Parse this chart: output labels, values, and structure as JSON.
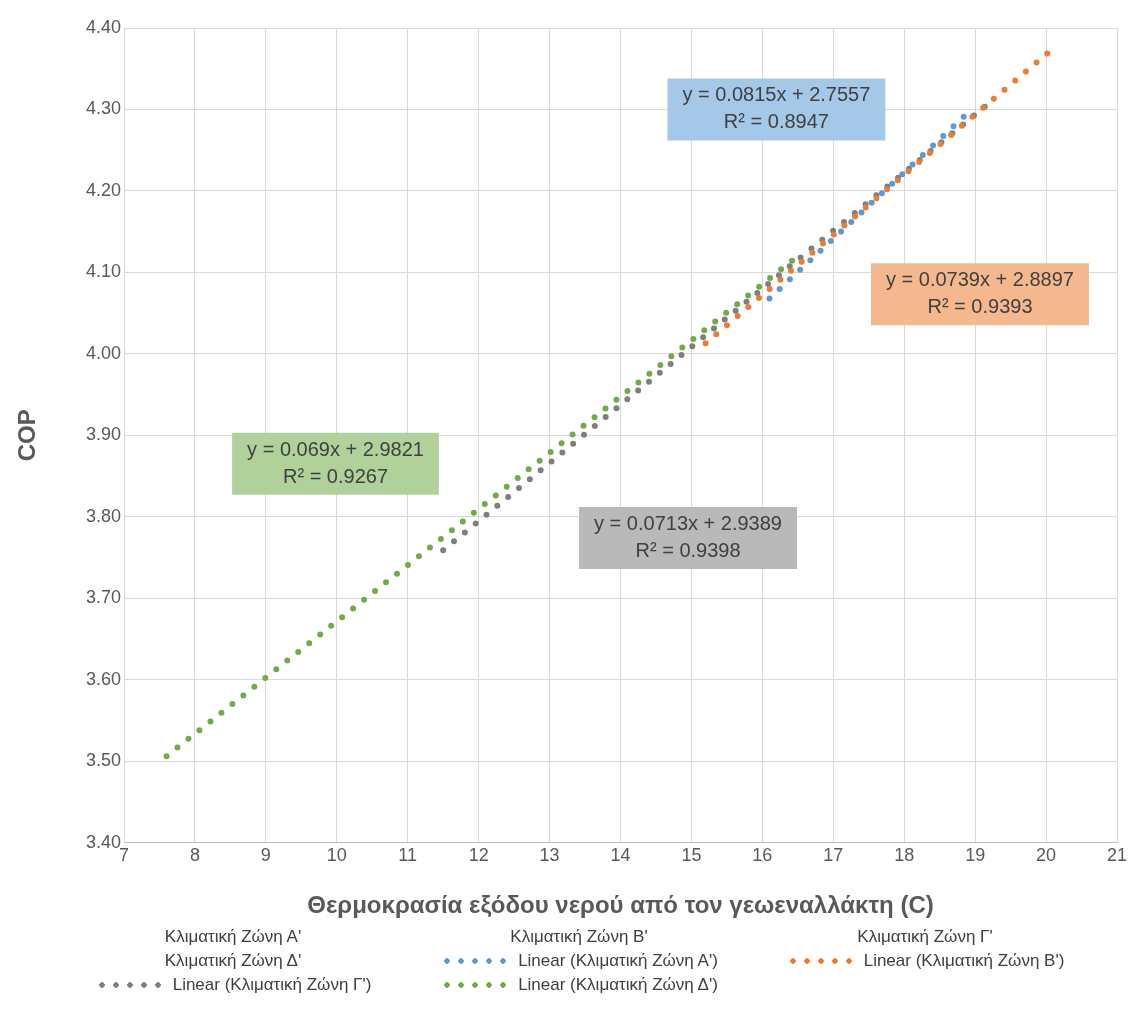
{
  "chart_data": {
    "type": "line",
    "xlabel": "Θερμοκρασία εξόδου νερού από τον γεωεναλλάκτη (C)",
    "ylabel": "COP",
    "xlim": [
      7,
      21
    ],
    "xticks": [
      7,
      8,
      9,
      10,
      11,
      12,
      13,
      14,
      15,
      16,
      17,
      18,
      19,
      20,
      21
    ],
    "ylim": [
      3.4,
      4.4
    ],
    "yticks": [
      {
        "value": 3.4,
        "label": "3.40"
      },
      {
        "value": 3.5,
        "label": "3.50"
      },
      {
        "value": 3.6,
        "label": "3.60"
      },
      {
        "value": 3.7,
        "label": "3.70"
      },
      {
        "value": 3.8,
        "label": "3.80"
      },
      {
        "value": 3.9,
        "label": "3.90"
      },
      {
        "value": 4.0,
        "label": "4.00"
      },
      {
        "value": 4.1,
        "label": "4.10"
      },
      {
        "value": 4.2,
        "label": "4.20"
      },
      {
        "value": 4.3,
        "label": "4.30"
      },
      {
        "value": 4.4,
        "label": "4.40"
      }
    ],
    "grid": true,
    "legend": "bottom",
    "line_style": "dotted",
    "marker": "none",
    "series": [
      {
        "name": "Linear (Κλιματική Ζώνη Α')",
        "color": "#5b9bd5",
        "x": [
          16.1,
          18.9
        ],
        "values": [
          4.068,
          4.296
        ]
      },
      {
        "name": "Linear (Κλιματική Ζώνη Β')",
        "color": "#ed7d31",
        "x": [
          15.2,
          20.1
        ],
        "values": [
          4.013,
          4.375
        ]
      },
      {
        "name": "Linear (Κλιματική Ζώνη Γ')",
        "color": "#7f7f7f",
        "x": [
          11.5,
          19.2
        ],
        "values": [
          3.759,
          4.308
        ]
      },
      {
        "name": "Linear (Κλιματική Ζώνη Δ')",
        "color": "#70ad47",
        "x": [
          7.6,
          16.5
        ],
        "values": [
          3.506,
          4.12
        ]
      }
    ],
    "annotations": [
      "Κλιματική Ζώνη Α'",
      "Κλιματική Ζώνη Β'",
      "Κλιματική Ζώνη Γ'",
      "Κλιματική Ζώνη Δ'",
      "y = 0.0815x + 2.7557\nR² = 0.8947",
      "y = 0.0739x + 2.8897\nR² = 0.9393",
      "y = 0.0713x + 2.9389\nR² = 0.9398",
      "y = 0.069x + 2.9821\nR² = 0.9267"
    ]
  }
}
